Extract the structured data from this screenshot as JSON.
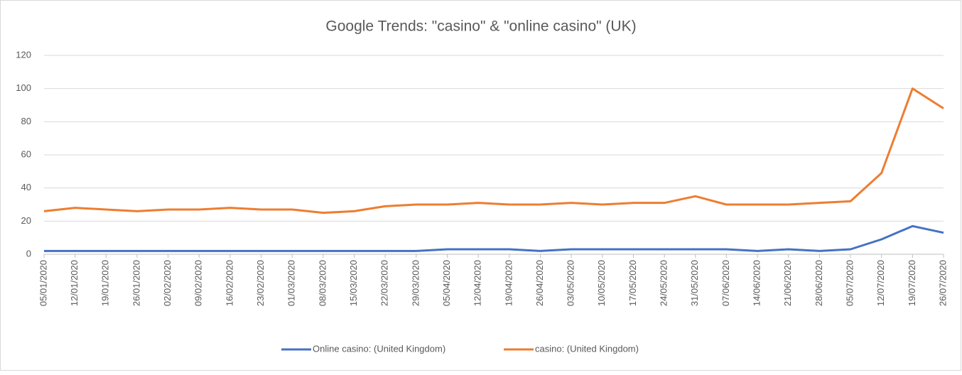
{
  "chart_data": {
    "type": "line",
    "title": "Google Trends: \"casino\" & \"online casino\" (UK)",
    "categories": [
      "05/01/2020",
      "12/01/2020",
      "19/01/2020",
      "26/01/2020",
      "02/02/2020",
      "09/02/2020",
      "16/02/2020",
      "23/02/2020",
      "01/03/2020",
      "08/03/2020",
      "15/03/2020",
      "22/03/2020",
      "29/03/2020",
      "05/04/2020",
      "12/04/2020",
      "19/04/2020",
      "26/04/2020",
      "03/05/2020",
      "10/05/2020",
      "17/05/2020",
      "24/05/2020",
      "31/05/2020",
      "07/06/2020",
      "14/06/2020",
      "21/06/2020",
      "28/06/2020",
      "05/07/2020",
      "12/07/2020",
      "19/07/2020",
      "26/07/2020"
    ],
    "series": [
      {
        "name": "Online casino: (United Kingdom)",
        "color": "#4472c4",
        "values": [
          2,
          2,
          2,
          2,
          2,
          2,
          2,
          2,
          2,
          2,
          2,
          2,
          2,
          3,
          3,
          3,
          2,
          3,
          3,
          3,
          3,
          3,
          3,
          2,
          3,
          2,
          3,
          9,
          17,
          13
        ]
      },
      {
        "name": "casino: (United Kingdom)",
        "color": "#ed7d31",
        "values": [
          26,
          28,
          27,
          26,
          27,
          27,
          28,
          27,
          27,
          25,
          26,
          29,
          30,
          30,
          31,
          30,
          30,
          31,
          30,
          31,
          31,
          35,
          30,
          30,
          30,
          31,
          32,
          49,
          100,
          88
        ]
      }
    ],
    "ylim": [
      0,
      120
    ],
    "yticks": [
      0,
      20,
      40,
      60,
      80,
      100,
      120
    ],
    "grid": true,
    "legend": "bottom"
  }
}
